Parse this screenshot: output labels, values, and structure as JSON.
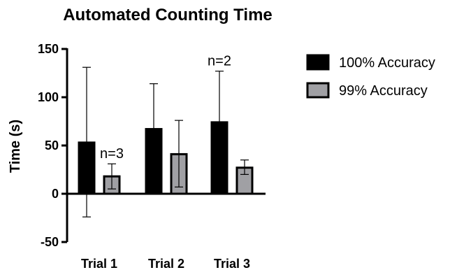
{
  "chart_data": {
    "type": "bar",
    "title": "Automated Counting Time",
    "ylabel": "Time (s)",
    "xlabel": "",
    "categories": [
      "Trial 1",
      "Trial 2",
      "Trial 3"
    ],
    "ylim": [
      -50,
      150
    ],
    "yticks": [
      -50,
      0,
      50,
      100,
      150
    ],
    "legend_position": "right",
    "series": [
      {
        "name": "100% Accuracy",
        "color": "#000000",
        "values": [
          53,
          67,
          74
        ],
        "error_upper": [
          131,
          114,
          127
        ],
        "error_lower": [
          -24,
          null,
          null
        ]
      },
      {
        "name": "99% Accuracy",
        "color": "#a0a0a4",
        "values": [
          18,
          41,
          27
        ],
        "error_upper": [
          31,
          76,
          35
        ],
        "error_lower": [
          5,
          7,
          20
        ]
      }
    ],
    "annotations": [
      {
        "text": "n=3",
        "category": "Trial 1",
        "series": "99% Accuracy"
      },
      {
        "text": "n=2",
        "category": "Trial 3",
        "series": "100% Accuracy"
      }
    ]
  }
}
